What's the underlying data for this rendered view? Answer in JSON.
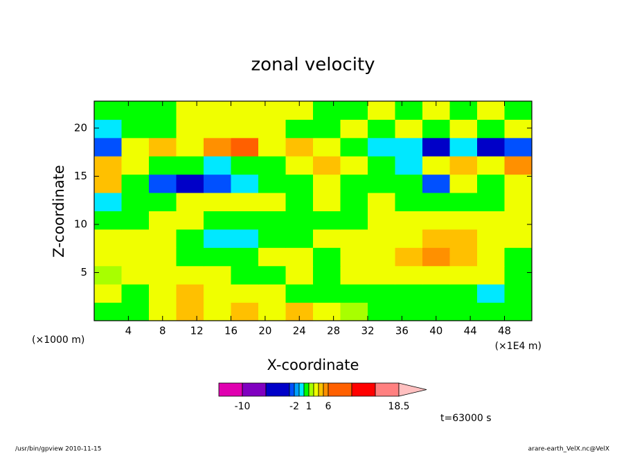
{
  "chart_data": {
    "type": "heatmap",
    "title": "zonal velocity",
    "x_label": "X-coordinate",
    "y_label": "Z-coordinate",
    "x_unit": "(×1E4 m)",
    "y_unit": "(×1000 m)",
    "annotation": "t=63000 s",
    "x": [
      1.6,
      4.8,
      8,
      11.2,
      14.4,
      17.6,
      20.8,
      24,
      27.2,
      30.4,
      33.6,
      36.8,
      40,
      43.2,
      46.4,
      49.6
    ],
    "y": [
      0.95,
      2.85,
      4.75,
      6.65,
      8.55,
      10.45,
      12.35,
      14.25,
      16.15,
      18.05,
      19.95,
      21.85
    ],
    "z": [
      [
        0.5,
        0.5,
        2.5,
        3.5,
        2.5,
        3.5,
        2.5,
        3.5,
        2.5,
        1.5,
        0.5,
        0.5,
        0.5,
        0.5,
        0.5,
        0.5
      ],
      [
        2.5,
        0.5,
        2.5,
        3.5,
        2.5,
        2.5,
        2.5,
        0.5,
        0.5,
        0.5,
        0.5,
        0.5,
        0.5,
        0.5,
        -0.5,
        0.5
      ],
      [
        1.5,
        2.5,
        2.5,
        2.5,
        2.5,
        0.5,
        0.5,
        2.5,
        0.5,
        2.5,
        2.5,
        2.5,
        2.5,
        2.5,
        2.5,
        0.5
      ],
      [
        2.5,
        2.5,
        2.5,
        0.5,
        0.5,
        0.5,
        2.5,
        2.5,
        0.5,
        2.5,
        2.5,
        3.5,
        4.5,
        3.5,
        2.5,
        0.5
      ],
      [
        2.5,
        2.5,
        2.5,
        0.5,
        -0.5,
        -0.5,
        0.5,
        0.5,
        2.5,
        2.5,
        2.5,
        2.5,
        3.5,
        3.5,
        2.5,
        2.5
      ],
      [
        0.5,
        0.5,
        2.5,
        2.5,
        0.5,
        0.5,
        0.5,
        0.5,
        0.5,
        0.5,
        2.5,
        2.5,
        2.5,
        2.5,
        2.5,
        2.5
      ],
      [
        -0.5,
        0.5,
        0.5,
        2.5,
        2.5,
        2.5,
        2.5,
        0.5,
        2.5,
        0.5,
        2.5,
        0.5,
        0.5,
        0.5,
        0.5,
        2.5
      ],
      [
        3.5,
        0.5,
        -2.5,
        -3.5,
        -2.5,
        -0.5,
        0.5,
        0.5,
        2.5,
        0.5,
        0.5,
        0.5,
        -2.5,
        2.5,
        0.5,
        2.5
      ],
      [
        3.5,
        2.5,
        0.5,
        0.5,
        -0.5,
        0.5,
        0.5,
        2.5,
        3.5,
        2.5,
        0.5,
        -0.5,
        2.5,
        3.5,
        2.5,
        4.5
      ],
      [
        -2.5,
        2.5,
        3.5,
        2.5,
        4.5,
        6.5,
        2.5,
        3.5,
        2.5,
        0.5,
        -0.5,
        -0.5,
        -3.5,
        -0.5,
        -3.5,
        -2.5
      ],
      [
        -0.5,
        0.5,
        0.5,
        2.5,
        2.5,
        2.5,
        2.5,
        0.5,
        0.5,
        2.5,
        0.5,
        2.5,
        0.5,
        2.5,
        0.5,
        2.5
      ],
      [
        0.5,
        0.5,
        0.5,
        2.5,
        2.5,
        2.5,
        2.5,
        2.5,
        0.5,
        0.5,
        2.5,
        0.5,
        2.5,
        0.5,
        2.5,
        0.5
      ]
    ],
    "xlim": [
      0,
      51.2
    ],
    "ylim": [
      0,
      22.8
    ],
    "xticks": [
      4,
      8,
      12,
      16,
      20,
      24,
      28,
      32,
      36,
      40,
      44,
      48
    ],
    "yticks": [
      5,
      10,
      15,
      20
    ],
    "colorbar": {
      "levels": [
        -14,
        -10,
        -6,
        -3,
        -2,
        -1,
        0,
        1,
        2,
        3,
        4,
        6,
        10,
        14,
        18.5
      ],
      "colors": [
        "#e000b0",
        "#8000c0",
        "#0000c8",
        "#0050ff",
        "#00a0ff",
        "#00e8ff",
        "#00ff00",
        "#a8ff00",
        "#f0ff00",
        "#ffc000",
        "#ff9000",
        "#ff6000",
        "#ff0000",
        "#ff8080",
        "#ffc0c0"
      ],
      "ticks": [
        -10,
        -2,
        1,
        6,
        18.5
      ]
    }
  },
  "footer": {
    "left": "/usr/bin/gpview   2010-11-15",
    "right": "arare-earth_VelX.nc@VelX"
  }
}
